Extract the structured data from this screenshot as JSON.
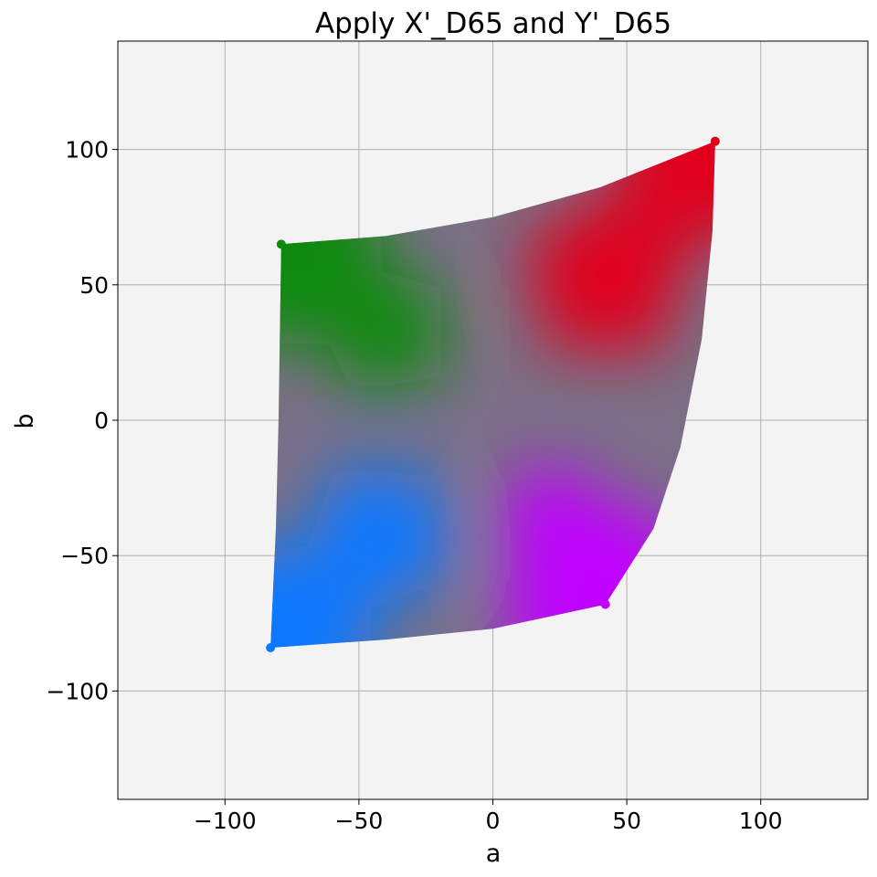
{
  "chart_data": {
    "type": "scatter",
    "title": "Apply X'_D65 and Y'_D65",
    "xlabel": "a",
    "ylabel": "b",
    "xlim": [
      -140,
      140
    ],
    "ylim": [
      -140,
      140
    ],
    "grid": true,
    "background": "#f3f3f3",
    "x_ticks": [
      -100,
      -50,
      0,
      50,
      100
    ],
    "y_ticks": [
      -100,
      -50,
      0,
      50,
      100
    ],
    "x_tick_labels": [
      "−100",
      "−50",
      "0",
      "50",
      "100"
    ],
    "y_tick_labels": [
      "−100",
      "−50",
      "0",
      "50",
      "100"
    ],
    "gamut_corners": {
      "top_left": {
        "a": -79,
        "b": 65,
        "color": "#108a08"
      },
      "top_right": {
        "a": 83,
        "b": 103,
        "color": "#e0001a"
      },
      "bottom_right": {
        "a": 42,
        "b": -68,
        "color": "#c000ff"
      },
      "bottom_left": {
        "a": -83,
        "b": -84,
        "color": "#0a78ff"
      }
    },
    "boundary": {
      "top": [
        [
          -79,
          65
        ],
        [
          -40,
          68
        ],
        [
          0,
          75
        ],
        [
          40,
          86
        ],
        [
          83,
          103
        ]
      ],
      "right": [
        [
          83,
          103
        ],
        [
          82,
          70
        ],
        [
          78,
          30
        ],
        [
          70,
          -10
        ],
        [
          60,
          -40
        ],
        [
          42,
          -68
        ]
      ],
      "bottom": [
        [
          42,
          -68
        ],
        [
          0,
          -77
        ],
        [
          -40,
          -81
        ],
        [
          -83,
          -84
        ]
      ],
      "left": [
        [
          -83,
          -84
        ],
        [
          -81,
          -40
        ],
        [
          -80,
          0
        ],
        [
          -79,
          65
        ]
      ]
    }
  }
}
